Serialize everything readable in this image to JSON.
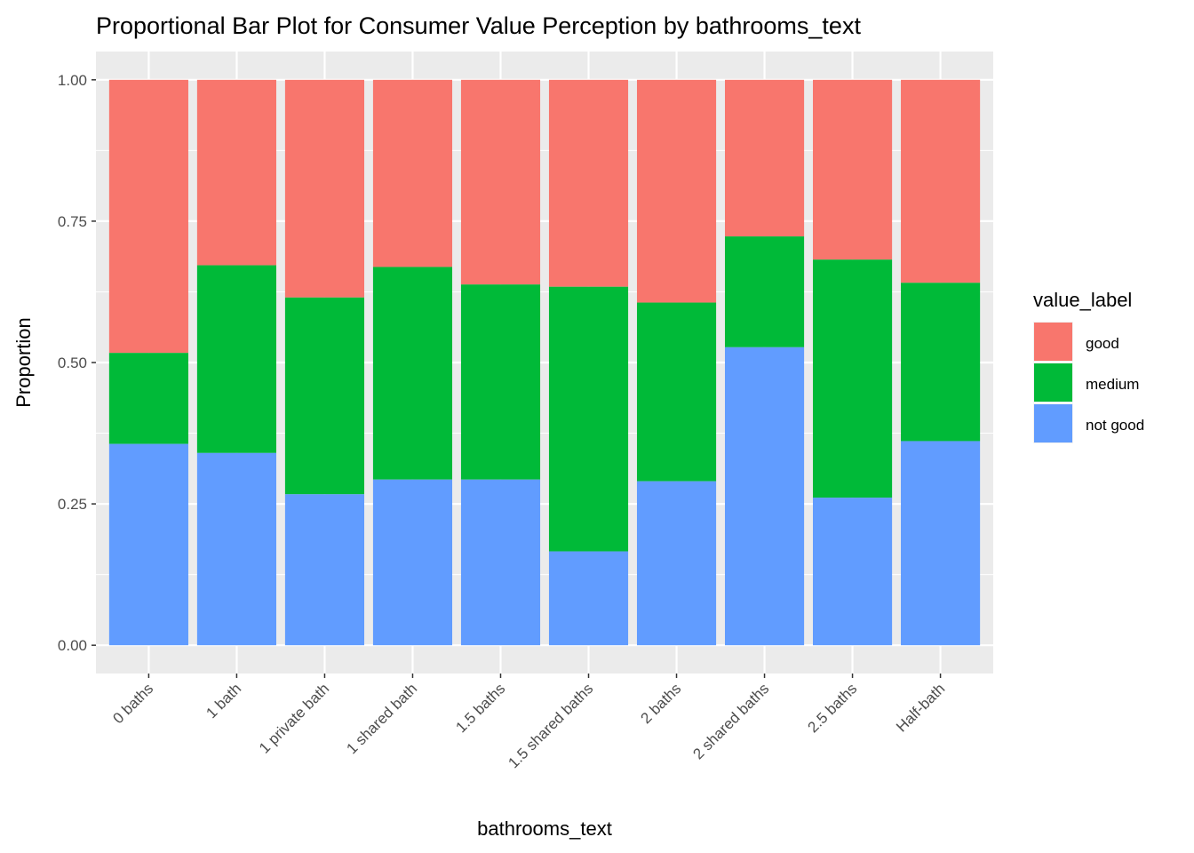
{
  "chart_data": {
    "type": "bar",
    "stacked": "proportional",
    "title": "Proportional Bar Plot for Consumer Value Perception by bathrooms_text",
    "xlabel": "bathrooms_text",
    "ylabel": "Proportion",
    "ylim": [
      0,
      1
    ],
    "yticks": [
      "0.00",
      "0.25",
      "0.50",
      "0.75",
      "1.00"
    ],
    "ytick_values": [
      0,
      0.25,
      0.5,
      0.75,
      1
    ],
    "grid": true,
    "categories": [
      "0 baths",
      "1 bath",
      "1 private bath",
      "1 shared bath",
      "1.5 baths",
      "1.5 shared baths",
      "2 baths",
      "2 shared baths",
      "2.5 baths",
      "Half-bath"
    ],
    "legend": {
      "title": "value_label",
      "position": "right"
    },
    "series": [
      {
        "name": "good",
        "color": "#F8766D",
        "values": [
          0.483,
          0.328,
          0.385,
          0.331,
          0.362,
          0.366,
          0.394,
          0.277,
          0.318,
          0.359
        ]
      },
      {
        "name": "medium",
        "color": "#00BA38",
        "values": [
          0.161,
          0.332,
          0.348,
          0.376,
          0.345,
          0.468,
          0.316,
          0.196,
          0.421,
          0.28
        ]
      },
      {
        "name": "not good",
        "color": "#619CFF",
        "values": [
          0.356,
          0.34,
          0.267,
          0.293,
          0.293,
          0.166,
          0.29,
          0.527,
          0.261,
          0.361
        ]
      }
    ]
  }
}
